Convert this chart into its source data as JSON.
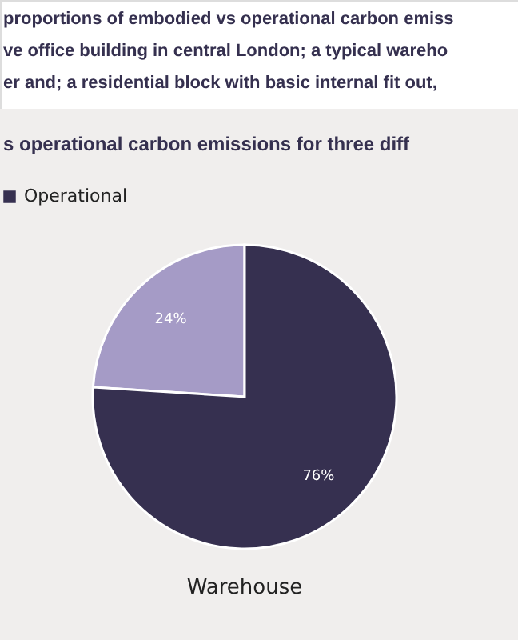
{
  "chart_data": {
    "type": "pie",
    "title": "s operational carbon emissions for three diff",
    "annotations": [
      "proportions of embodied vs operational carbon emiss",
      "ve office building in central London; a typical wareho",
      "er and; a residential block with basic internal fit out,"
    ],
    "xlabel": "Warehouse",
    "categories": [
      null,
      "Operational"
    ],
    "values": [
      24,
      76
    ],
    "colors": [
      "#a59bc6",
      "#363050"
    ],
    "value_labels": [
      "24%",
      "76%"
    ],
    "legend": "top left"
  }
}
